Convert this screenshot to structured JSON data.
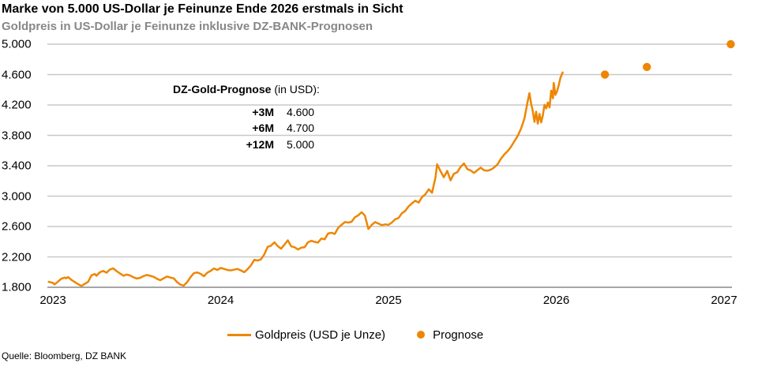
{
  "header": {
    "title": "Marke von 5.000 US-Dollar je Feinunze Ende 2026 erstmals in Sicht",
    "subtitle": "Goldpreis in US-Dollar je Feinunze inklusive DZ-BANK-Prognosen"
  },
  "annotation": {
    "title_bold": "DZ-Gold-Prognose",
    "title_rest": " (in USD):",
    "rows": [
      {
        "label": "+3M",
        "value": "4.600"
      },
      {
        "label": "+6M",
        "value": "4.700"
      },
      {
        "label": "+12M",
        "value": "5.000"
      }
    ]
  },
  "legend": [
    {
      "type": "line",
      "label": "Goldpreis (USD je Unze)"
    },
    {
      "type": "dot",
      "label": "Prognose"
    }
  ],
  "source": "Quelle: Bloomberg, DZ BANK",
  "colors": {
    "accent": "#EE8600",
    "gridline": "#C8C8C8",
    "axis_line": "#A6A6A6",
    "subtitle_gray": "#878787"
  },
  "chart_data": {
    "type": "line",
    "title": "Marke von 5.000 US-Dollar je Feinunze Ende 2026 erstmals in Sicht",
    "subtitle": "Goldpreis in US-Dollar je Feinunze inklusive DZ-BANK-Prognosen",
    "xlabel": "",
    "ylabel": "",
    "grid": "horizontal",
    "legend_position": "bottom",
    "xlim": [
      2022.97,
      2027.05
    ],
    "ylim": [
      1800,
      5000
    ],
    "x_ticks": [
      {
        "value": 2023,
        "label": "2023"
      },
      {
        "value": 2024,
        "label": "2024"
      },
      {
        "value": 2025,
        "label": "2025"
      },
      {
        "value": 2026,
        "label": "2026"
      },
      {
        "value": 2027,
        "label": "2027"
      }
    ],
    "y_ticks": [
      {
        "value": 1800,
        "label": "1.800"
      },
      {
        "value": 2200,
        "label": "2.200"
      },
      {
        "value": 2600,
        "label": "2.600"
      },
      {
        "value": 3000,
        "label": "3.000"
      },
      {
        "value": 3400,
        "label": "3.400"
      },
      {
        "value": 3800,
        "label": "3.800"
      },
      {
        "value": 4200,
        "label": "4.200"
      },
      {
        "value": 4600,
        "label": "4.600"
      },
      {
        "value": 5000,
        "label": "5.000"
      }
    ],
    "series": [
      {
        "name": "Goldpreis (USD je Unze)",
        "points": [
          [
            2022.975,
            1872
          ],
          [
            2023.0,
            1858
          ],
          [
            2023.01,
            1838
          ],
          [
            2023.03,
            1875
          ],
          [
            2023.05,
            1912
          ],
          [
            2023.07,
            1928
          ],
          [
            2023.08,
            1918
          ],
          [
            2023.09,
            1935
          ],
          [
            2023.11,
            1898
          ],
          [
            2023.13,
            1870
          ],
          [
            2023.15,
            1842
          ],
          [
            2023.17,
            1818
          ],
          [
            2023.19,
            1845
          ],
          [
            2023.21,
            1872
          ],
          [
            2023.23,
            1958
          ],
          [
            2023.25,
            1975
          ],
          [
            2023.26,
            1952
          ],
          [
            2023.28,
            1998
          ],
          [
            2023.3,
            2015
          ],
          [
            2023.32,
            1992
          ],
          [
            2023.34,
            2035
          ],
          [
            2023.36,
            2048
          ],
          [
            2023.38,
            2012
          ],
          [
            2023.4,
            1982
          ],
          [
            2023.42,
            1952
          ],
          [
            2023.44,
            1968
          ],
          [
            2023.46,
            1955
          ],
          [
            2023.48,
            1932
          ],
          [
            2023.5,
            1915
          ],
          [
            2023.52,
            1925
          ],
          [
            2023.54,
            1948
          ],
          [
            2023.56,
            1962
          ],
          [
            2023.58,
            1952
          ],
          [
            2023.6,
            1938
          ],
          [
            2023.62,
            1912
          ],
          [
            2023.64,
            1892
          ],
          [
            2023.66,
            1918
          ],
          [
            2023.68,
            1942
          ],
          [
            2023.7,
            1928
          ],
          [
            2023.72,
            1918
          ],
          [
            2023.74,
            1868
          ],
          [
            2023.76,
            1835
          ],
          [
            2023.78,
            1822
          ],
          [
            2023.8,
            1868
          ],
          [
            2023.82,
            1932
          ],
          [
            2023.84,
            1985
          ],
          [
            2023.86,
            1995
          ],
          [
            2023.88,
            1978
          ],
          [
            2023.9,
            1945
          ],
          [
            2023.92,
            1992
          ],
          [
            2023.94,
            2015
          ],
          [
            2023.96,
            2048
          ],
          [
            2023.98,
            2028
          ],
          [
            2024.0,
            2055
          ],
          [
            2024.02,
            2042
          ],
          [
            2024.04,
            2028
          ],
          [
            2024.06,
            2022
          ],
          [
            2024.08,
            2032
          ],
          [
            2024.1,
            2042
          ],
          [
            2024.12,
            2022
          ],
          [
            2024.14,
            1998
          ],
          [
            2024.16,
            2038
          ],
          [
            2024.18,
            2088
          ],
          [
            2024.2,
            2162
          ],
          [
            2024.22,
            2152
          ],
          [
            2024.24,
            2168
          ],
          [
            2024.26,
            2232
          ],
          [
            2024.28,
            2332
          ],
          [
            2024.3,
            2348
          ],
          [
            2024.32,
            2392
          ],
          [
            2024.34,
            2342
          ],
          [
            2024.36,
            2308
          ],
          [
            2024.38,
            2362
          ],
          [
            2024.4,
            2418
          ],
          [
            2024.42,
            2338
          ],
          [
            2024.44,
            2328
          ],
          [
            2024.46,
            2298
          ],
          [
            2024.48,
            2322
          ],
          [
            2024.5,
            2328
          ],
          [
            2024.52,
            2392
          ],
          [
            2024.54,
            2412
          ],
          [
            2024.56,
            2398
          ],
          [
            2024.58,
            2388
          ],
          [
            2024.6,
            2442
          ],
          [
            2024.62,
            2432
          ],
          [
            2024.64,
            2508
          ],
          [
            2024.66,
            2518
          ],
          [
            2024.68,
            2502
          ],
          [
            2024.7,
            2582
          ],
          [
            2024.72,
            2622
          ],
          [
            2024.74,
            2658
          ],
          [
            2024.76,
            2652
          ],
          [
            2024.78,
            2662
          ],
          [
            2024.8,
            2722
          ],
          [
            2024.82,
            2748
          ],
          [
            2024.84,
            2788
          ],
          [
            2024.86,
            2742
          ],
          [
            2024.88,
            2568
          ],
          [
            2024.9,
            2622
          ],
          [
            2024.92,
            2658
          ],
          [
            2024.94,
            2638
          ],
          [
            2024.96,
            2618
          ],
          [
            2024.98,
            2628
          ],
          [
            2025.0,
            2622
          ],
          [
            2025.02,
            2652
          ],
          [
            2025.04,
            2695
          ],
          [
            2025.06,
            2712
          ],
          [
            2025.08,
            2775
          ],
          [
            2025.1,
            2805
          ],
          [
            2025.12,
            2865
          ],
          [
            2025.14,
            2905
          ],
          [
            2025.16,
            2940
          ],
          [
            2025.18,
            2915
          ],
          [
            2025.2,
            2988
          ],
          [
            2025.22,
            3025
          ],
          [
            2025.24,
            3090
          ],
          [
            2025.26,
            3045
          ],
          [
            2025.28,
            3245
          ],
          [
            2025.29,
            3420
          ],
          [
            2025.31,
            3328
          ],
          [
            2025.33,
            3248
          ],
          [
            2025.35,
            3332
          ],
          [
            2025.37,
            3208
          ],
          [
            2025.39,
            3295
          ],
          [
            2025.41,
            3315
          ],
          [
            2025.43,
            3385
          ],
          [
            2025.45,
            3430
          ],
          [
            2025.47,
            3355
          ],
          [
            2025.49,
            3338
          ],
          [
            2025.51,
            3305
          ],
          [
            2025.53,
            3342
          ],
          [
            2025.55,
            3375
          ],
          [
            2025.57,
            3340
          ],
          [
            2025.59,
            3335
          ],
          [
            2025.61,
            3348
          ],
          [
            2025.63,
            3378
          ],
          [
            2025.65,
            3418
          ],
          [
            2025.67,
            3492
          ],
          [
            2025.69,
            3548
          ],
          [
            2025.71,
            3592
          ],
          [
            2025.73,
            3648
          ],
          [
            2025.75,
            3722
          ],
          [
            2025.77,
            3792
          ],
          [
            2025.79,
            3888
          ],
          [
            2025.81,
            4018
          ],
          [
            2025.82,
            4132
          ],
          [
            2025.83,
            4252
          ],
          [
            2025.84,
            4356
          ],
          [
            2025.85,
            4222
          ],
          [
            2025.86,
            4122
          ],
          [
            2025.87,
            3978
          ],
          [
            2025.88,
            4112
          ],
          [
            2025.89,
            3955
          ],
          [
            2025.9,
            4082
          ],
          [
            2025.91,
            3970
          ],
          [
            2025.92,
            4062
          ],
          [
            2025.93,
            4202
          ],
          [
            2025.94,
            4155
          ],
          [
            2025.95,
            4232
          ],
          [
            2025.96,
            4168
          ],
          [
            2025.97,
            4388
          ],
          [
            2025.98,
            4288
          ],
          [
            2025.985,
            4490
          ],
          [
            2025.995,
            4332
          ],
          [
            2026.005,
            4385
          ],
          [
            2026.015,
            4462
          ],
          [
            2026.025,
            4558
          ],
          [
            2026.038,
            4628
          ]
        ]
      }
    ],
    "forecast": {
      "name": "Prognose",
      "points": [
        {
          "horizon": "+3M",
          "t": 2026.29,
          "value": 4600
        },
        {
          "horizon": "+6M",
          "t": 2026.54,
          "value": 4700
        },
        {
          "horizon": "+12M",
          "t": 2027.04,
          "value": 5000
        }
      ]
    }
  }
}
